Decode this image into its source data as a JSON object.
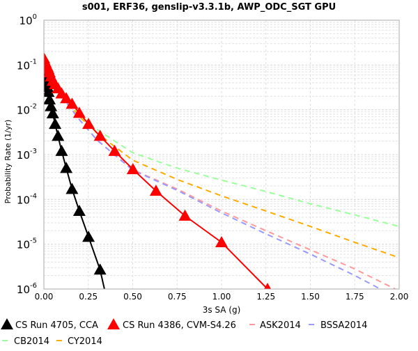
{
  "chart_data": {
    "type": "line",
    "title": "s001, ERF36, genslip-v3.3.1b, AWP_ODC_SGT GPU",
    "xlabel": "3s SA (g)",
    "ylabel": "Probability Rate (1/yr)",
    "xlim": [
      0,
      2.0
    ],
    "ylim": [
      1e-06,
      1
    ],
    "yscale": "log",
    "grid": true,
    "legend_position": "bottom",
    "x_ticks": [
      "0.00",
      "0.25",
      "0.50",
      "0.75",
      "1.00",
      "1.25",
      "1.50",
      "1.75",
      "2.00"
    ],
    "y_ticks": [
      {
        "base": "10",
        "exp": "0"
      },
      {
        "base": "10",
        "exp": "-1"
      },
      {
        "base": "10",
        "exp": "-2"
      },
      {
        "base": "10",
        "exp": "-3"
      },
      {
        "base": "10",
        "exp": "-4"
      },
      {
        "base": "10",
        "exp": "-5"
      },
      {
        "base": "10",
        "exp": "-6"
      }
    ],
    "series": [
      {
        "name": "CS Run 4705, CCA",
        "color": "#000000",
        "style": "solid",
        "marker": "triangle",
        "x": [
          0.0001,
          0.001,
          0.005,
          0.01,
          0.0126,
          0.0158,
          0.02,
          0.0251,
          0.0316,
          0.0398,
          0.0501,
          0.0631,
          0.0794,
          0.1,
          0.1259,
          0.1585,
          0.1995,
          0.2512,
          0.3162,
          0.3981
        ],
        "y": [
          0.13,
          0.12,
          0.1,
          0.07,
          0.055,
          0.042,
          0.032,
          0.025,
          0.017,
          0.012,
          0.0083,
          0.0048,
          0.0026,
          0.0012,
          0.0005,
          0.00017,
          5.5e-05,
          1.45e-05,
          2.7e-06,
          1e-07
        ]
      },
      {
        "name": "CS Run 4386, CVM-S4.26",
        "color": "#ff0000",
        "style": "solid",
        "marker": "triangle",
        "x": [
          0.0001,
          0.001,
          0.005,
          0.01,
          0.0126,
          0.0158,
          0.02,
          0.0251,
          0.0316,
          0.0398,
          0.0501,
          0.0631,
          0.0794,
          0.1,
          0.1259,
          0.1585,
          0.1995,
          0.2512,
          0.3162,
          0.3981,
          0.5012,
          0.631,
          0.7943,
          1.0,
          1.2589
        ],
        "y": [
          0.14,
          0.13,
          0.12,
          0.11,
          0.1,
          0.095,
          0.09,
          0.08,
          0.068,
          0.055,
          0.044,
          0.037,
          0.03,
          0.023,
          0.018,
          0.0135,
          0.0085,
          0.0048,
          0.0026,
          0.0012,
          0.00047,
          0.000155,
          4.3e-05,
          1.1e-05,
          1e-06
        ]
      },
      {
        "name": "ASK2014",
        "color": "#ff9999",
        "style": "dashed",
        "x": [
          0.01,
          0.05,
          0.1,
          0.2,
          0.3,
          0.5,
          0.75,
          1.0,
          1.25,
          1.5,
          1.75,
          2.0
        ],
        "y": [
          0.13,
          0.045,
          0.02,
          0.006,
          0.0021,
          0.00046,
          0.00017,
          5.5e-05,
          2e-05,
          7.5e-06,
          2.8e-06,
          9e-07
        ]
      },
      {
        "name": "BSSA2014",
        "color": "#9999ff",
        "style": "dashed",
        "x": [
          0.01,
          0.05,
          0.1,
          0.2,
          0.3,
          0.5,
          0.75,
          1.0,
          1.25,
          1.5,
          1.75,
          2.0
        ],
        "y": [
          0.13,
          0.045,
          0.02,
          0.006,
          0.0021,
          0.00045,
          0.00016,
          5e-05,
          1.7e-05,
          6e-06,
          2e-06,
          6e-07
        ]
      },
      {
        "name": "CB2014",
        "color": "#99ff99",
        "style": "dashed",
        "x": [
          0.01,
          0.05,
          0.1,
          0.2,
          0.3,
          0.5,
          0.75,
          1.0,
          1.25,
          1.5,
          1.75,
          2.0
        ],
        "y": [
          0.13,
          0.05,
          0.023,
          0.008,
          0.0036,
          0.0011,
          0.0005,
          0.00027,
          0.00015,
          8e-05,
          4.5e-05,
          2.5e-05
        ]
      },
      {
        "name": "CY2014",
        "color": "#ffaa00",
        "style": "dashed",
        "x": [
          0.01,
          0.05,
          0.1,
          0.2,
          0.3,
          0.5,
          0.75,
          1.0,
          1.25,
          1.5,
          1.75,
          2.0
        ],
        "y": [
          0.13,
          0.05,
          0.022,
          0.007,
          0.003,
          0.00075,
          0.00028,
          0.00012,
          5.5e-05,
          2.5e-05,
          1.1e-05,
          5e-06
        ]
      }
    ]
  }
}
